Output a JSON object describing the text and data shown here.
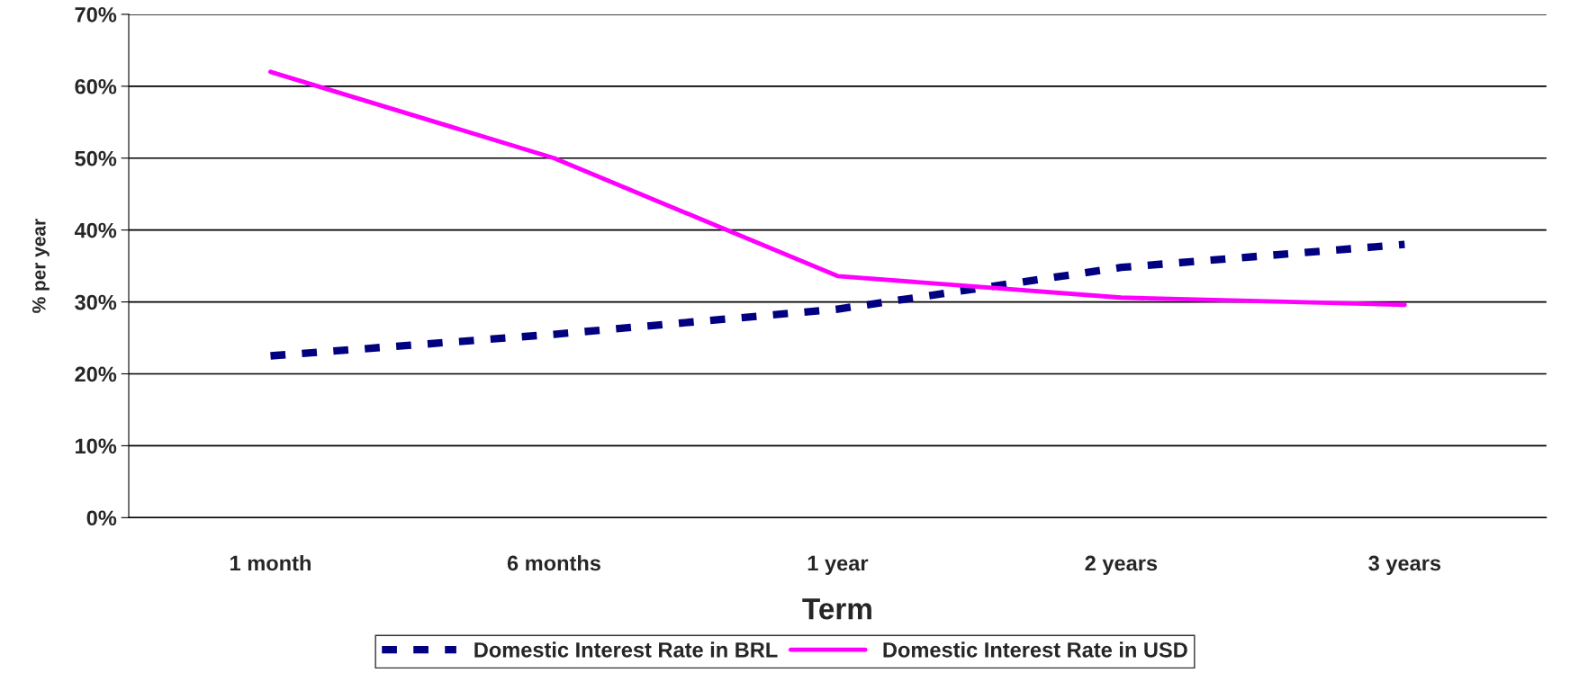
{
  "chart_data": {
    "type": "line",
    "xlabel": "Term",
    "ylabel": "% per year",
    "categories": [
      "1 month",
      "6 months",
      "1 year",
      "2 years",
      "3 years"
    ],
    "series": [
      {
        "name": "Domestic Interest Rate in BRL",
        "color": "#000080",
        "line_style": "dashed",
        "values": [
          22.5,
          25.5,
          29,
          34.8,
          38
        ]
      },
      {
        "name": "Domestic Interest Rate in USD",
        "color": "#ff00ff",
        "line_style": "solid",
        "values": [
          62,
          50,
          33.6,
          30.6,
          29.6
        ]
      }
    ],
    "ylim": [
      0,
      70
    ],
    "yticks": [
      {
        "value": 0,
        "label": "0%"
      },
      {
        "value": 10,
        "label": "10%"
      },
      {
        "value": 20,
        "label": "20%"
      },
      {
        "value": 30,
        "label": "30%"
      },
      {
        "value": 40,
        "label": "40%"
      },
      {
        "value": 50,
        "label": "50%"
      },
      {
        "value": 60,
        "label": "60%"
      },
      {
        "value": 70,
        "label": "70%"
      }
    ],
    "grid": "y",
    "legend": "bottom",
    "marker": "none"
  }
}
